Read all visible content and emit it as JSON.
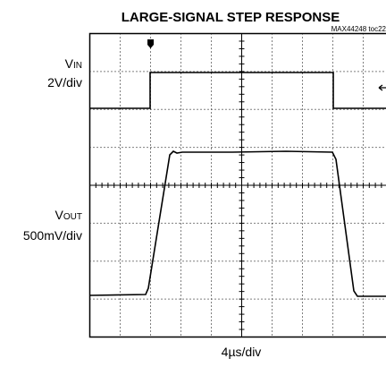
{
  "title": "LARGE-SIGNAL STEP RESPONSE",
  "note": "MAX44248 toc22",
  "channels": [
    {
      "name": "V",
      "sub": "IN",
      "scale": "2V/div"
    },
    {
      "name": "V",
      "sub": "OUT",
      "scale": "500mV/div"
    }
  ],
  "timebase": "4µs/div"
}
